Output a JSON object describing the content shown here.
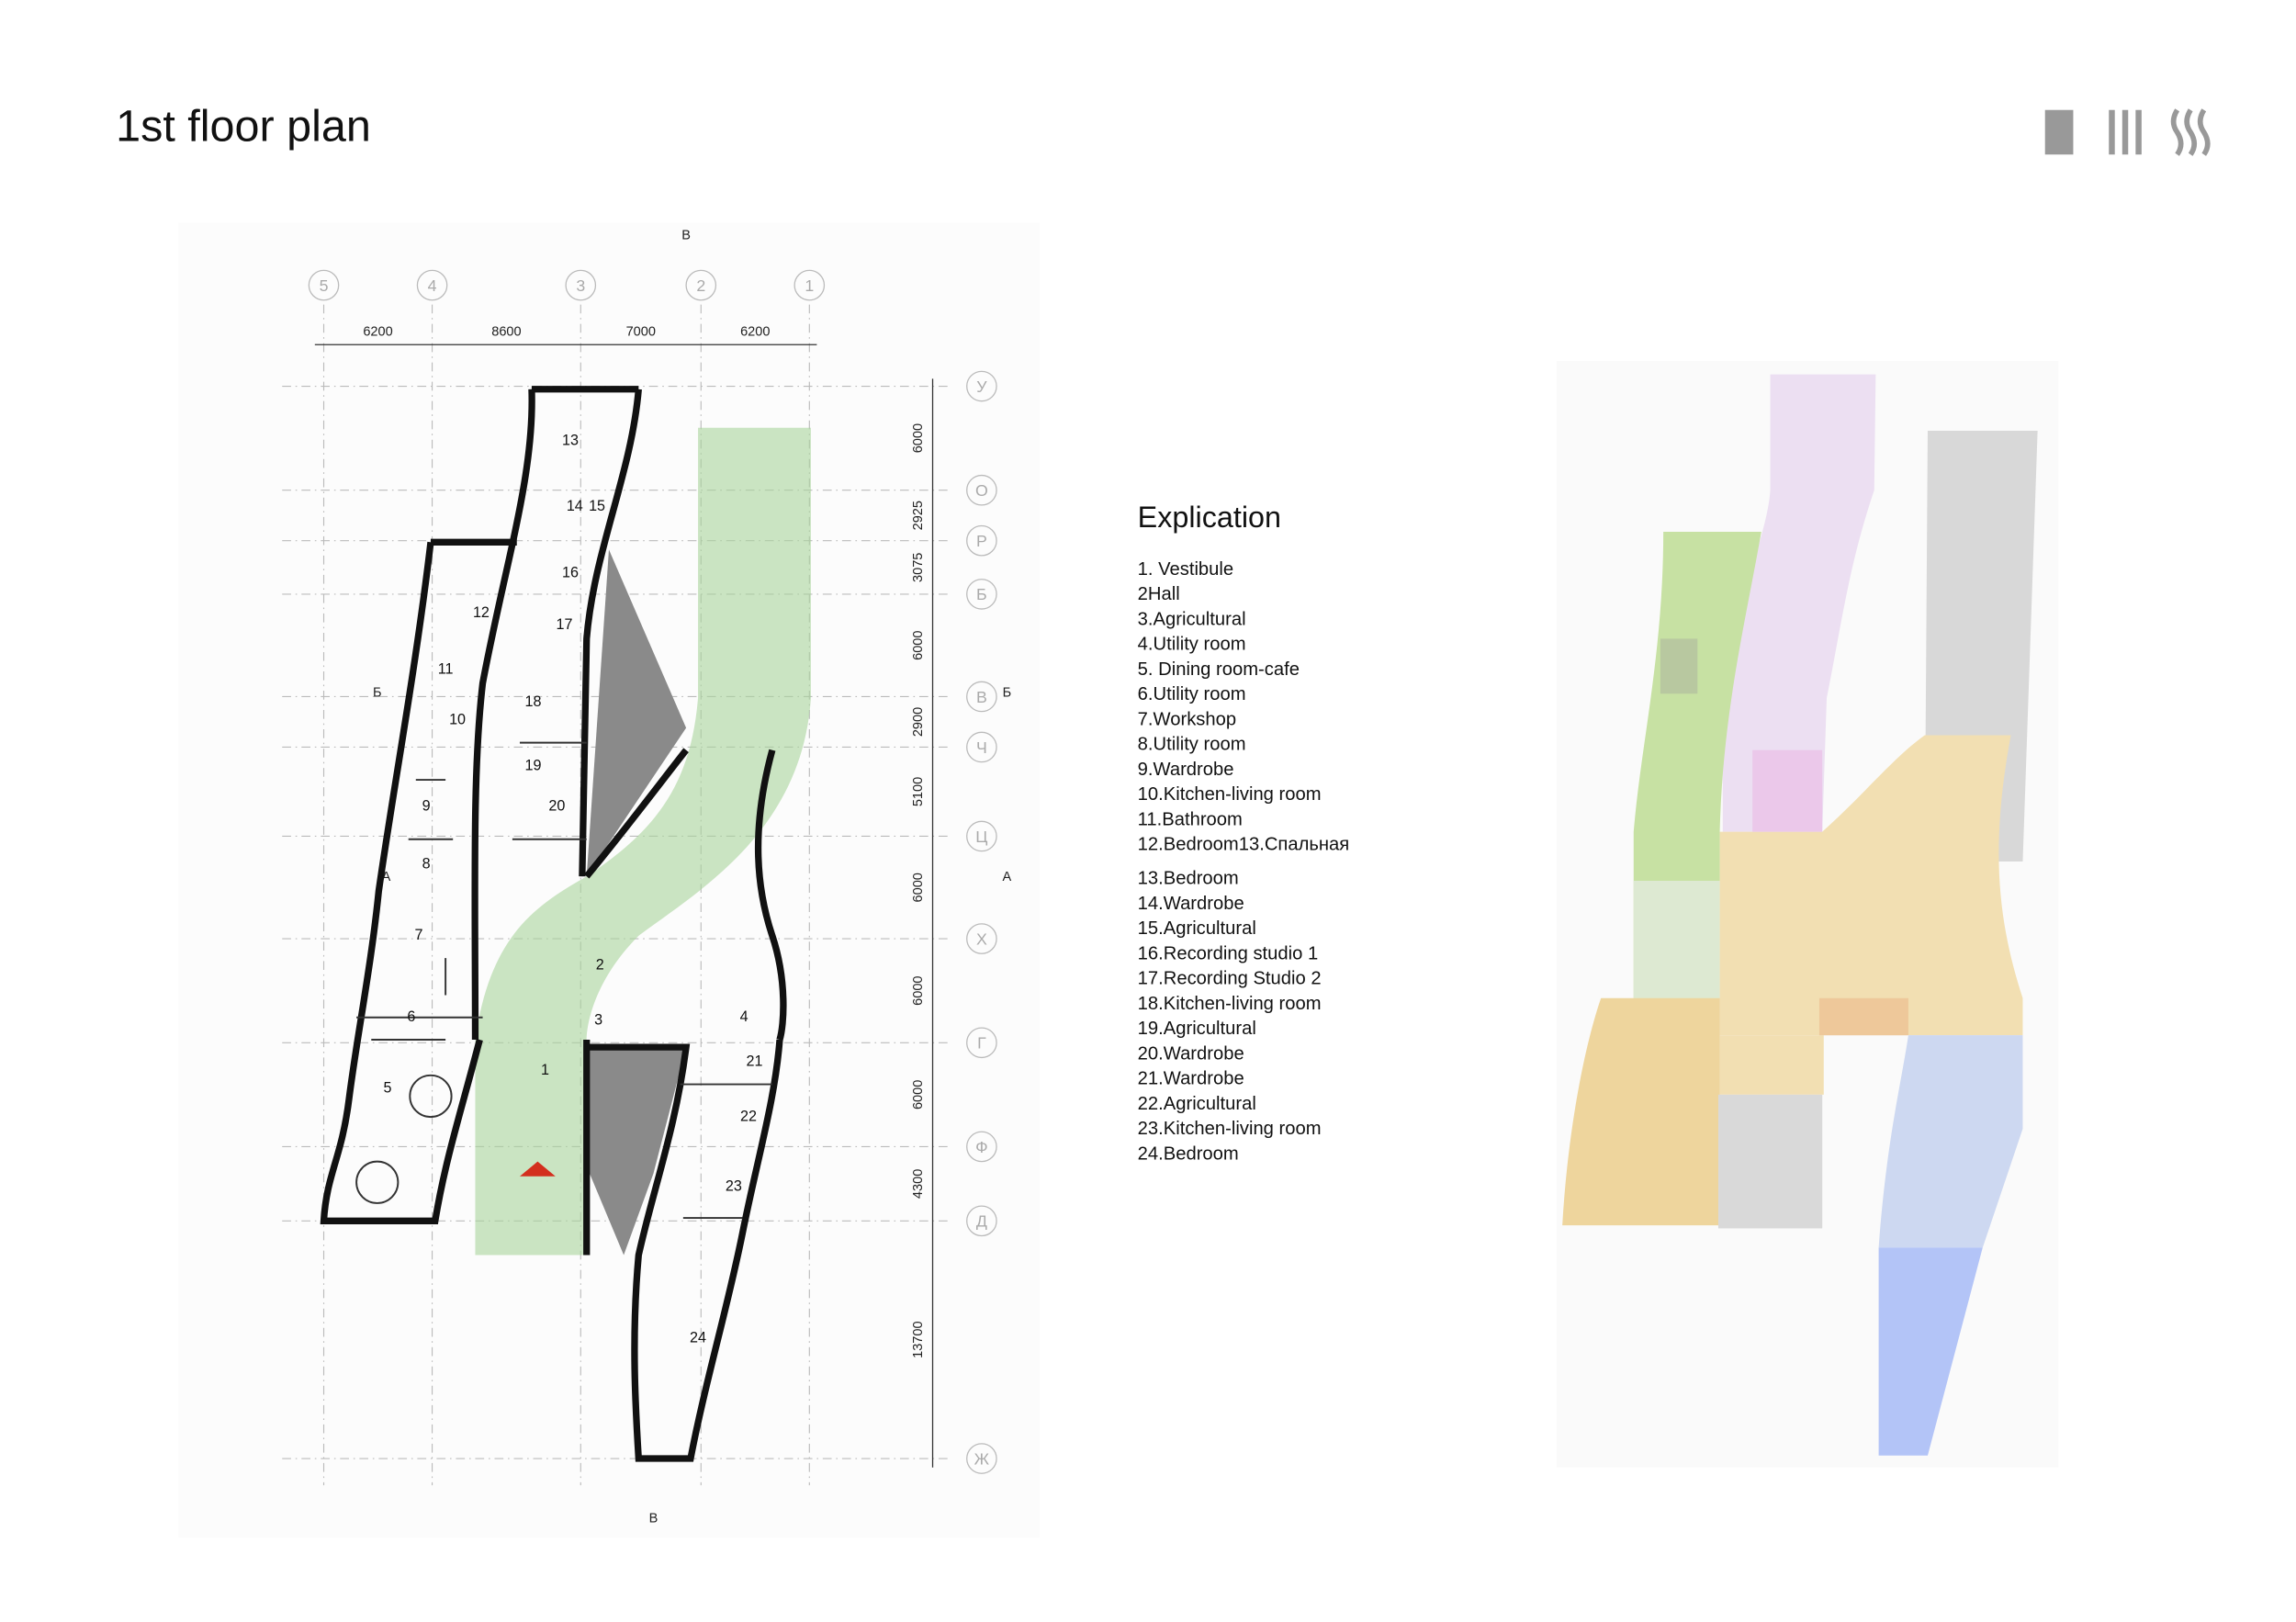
{
  "header": {
    "title": "1st floor plan"
  },
  "explication": {
    "heading": "Explication",
    "items": [
      "1. Vestibule",
      "2Hall",
      "3.Agricultural",
      "4.Utility room",
      "5. Dining room-cafe",
      "6.Utility room",
      "7.Workshop",
      "8.Utility room",
      "9.Wardrobe",
      "10.Kitchen-living room",
      "11.Bathroom",
      "12.Bedroom13.Спальная",
      "13.Bedroom",
      "14.Wardrobe",
      "15.Agricultural",
      "16.Recording studio 1",
      "17.Recording Studio 2",
      "18.Kitchen-living room",
      "19.Agricultural",
      "20.Wardrobe",
      "21.Wardrobe",
      "22.Agricultural",
      "23.Kitchen-living room",
      "24.Bedroom"
    ]
  },
  "plan": {
    "column_axes": [
      "5",
      "4",
      "3",
      "2",
      "1"
    ],
    "column_dimensions": [
      6200,
      8600,
      7000,
      6200
    ],
    "row_axes": [
      "У",
      "О",
      "Р",
      "Б",
      "В",
      "Ч",
      "Ц",
      "Х",
      "Г",
      "Ф",
      "Д",
      "Ж"
    ],
    "row_dimensions": [
      6000,
      2925,
      3075,
      6000,
      2900,
      5100,
      6000,
      6000,
      6000,
      4300,
      13700
    ],
    "section_marks": [
      "В",
      "В",
      "Б",
      "Б",
      "А",
      "А"
    ],
    "rooms": [
      "13",
      "14",
      "15",
      "16",
      "12",
      "17",
      "11",
      "18",
      "10",
      "19",
      "9",
      "20",
      "8",
      "7",
      "2",
      "6",
      "3",
      "4",
      "21",
      "1",
      "5",
      "22",
      "23",
      "24"
    ]
  }
}
